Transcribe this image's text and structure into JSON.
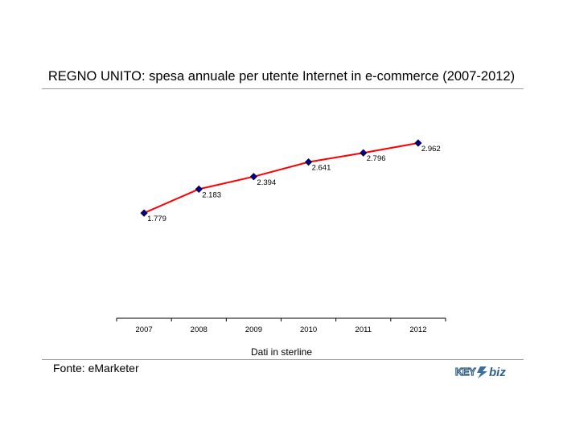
{
  "title": "REGNO UNITO: spesa annuale per utente Internet in e-commerce (2007-2012)",
  "source": "Fonte: eMarketer",
  "logo_text": "KEY4biz",
  "chart_data": {
    "type": "line",
    "title": "REGNO UNITO: spesa annuale per utente Internet in e-commerce (2007-2012)",
    "xlabel": "Dati in sterline",
    "ylabel": "",
    "categories": [
      "2007",
      "2008",
      "2009",
      "2010",
      "2011",
      "2012"
    ],
    "values": [
      1779,
      2183,
      2394,
      2641,
      2796,
      2962
    ],
    "data_labels": [
      "1.779",
      "2.183",
      "2.394",
      "2.641",
      "2.796",
      "2.962"
    ],
    "ylim": [
      0,
      4000
    ],
    "grid": false,
    "line_color": "#ff0000",
    "marker_color": "#000080",
    "marker": "diamond"
  }
}
